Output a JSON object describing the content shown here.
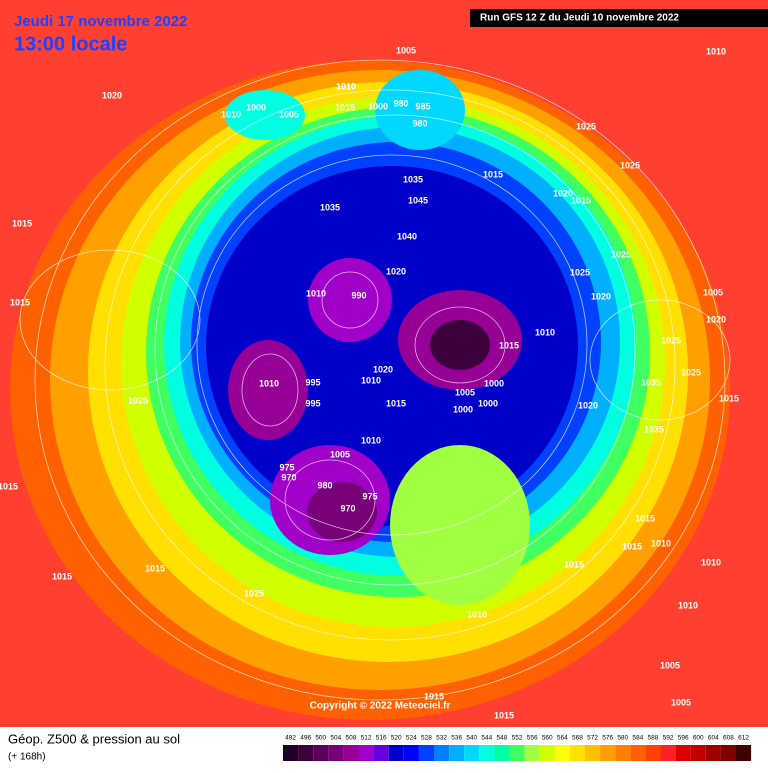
{
  "header": {
    "date": "Jeudi 17 novembre 2022",
    "time": "13:00 locale",
    "run": "Run GFS 12 Z du Jeudi 10 novembre 2022"
  },
  "copyright": "Copyright © 2022 Meteociel.fr",
  "footer": {
    "title": "Géop. Z500 & pression au sol",
    "subtitle": "(+ 168h)"
  },
  "colorbar": {
    "values": [
      492,
      496,
      500,
      504,
      508,
      512,
      516,
      520,
      524,
      528,
      532,
      536,
      540,
      544,
      548,
      552,
      556,
      560,
      564,
      568,
      572,
      576,
      580,
      584,
      588,
      592,
      596,
      600,
      604,
      608,
      612
    ],
    "colors": [
      "#1e0028",
      "#3c003c",
      "#5a005a",
      "#780078",
      "#960096",
      "#a000c8",
      "#6400dc",
      "#0000c8",
      "#0000ff",
      "#0040ff",
      "#0080ff",
      "#00b0ff",
      "#00d8ff",
      "#00ffe0",
      "#00ffa0",
      "#40ff60",
      "#a0ff40",
      "#d0ff00",
      "#ffff00",
      "#ffe000",
      "#ffc000",
      "#ffa000",
      "#ff8000",
      "#ff6000",
      "#ff4000",
      "#ff2020",
      "#e00000",
      "#c00000",
      "#a00000",
      "#800000",
      "#400000"
    ]
  },
  "pressure_labels": [
    1020,
    1015,
    1015,
    1015,
    1015,
    1015,
    1025,
    1025,
    1010,
    1000,
    1005,
    1010,
    1015,
    1000,
    980,
    985,
    980,
    1005,
    1035,
    1035,
    1045,
    1040,
    1020,
    990,
    1010,
    1010,
    995,
    995,
    1010,
    1020,
    1015,
    1005,
    1000,
    1000,
    1000,
    1015,
    1010,
    1015,
    1025,
    1025,
    1020,
    1015,
    1025,
    1020,
    1025,
    1010,
    1005,
    1020,
    1025,
    1035,
    1025,
    1015,
    1020,
    1035,
    1010,
    1005,
    975,
    970,
    980,
    975,
    970,
    1015,
    1015,
    1010,
    1010,
    1015,
    1010,
    1010,
    1005,
    1005,
    1015,
    1015
  ]
}
